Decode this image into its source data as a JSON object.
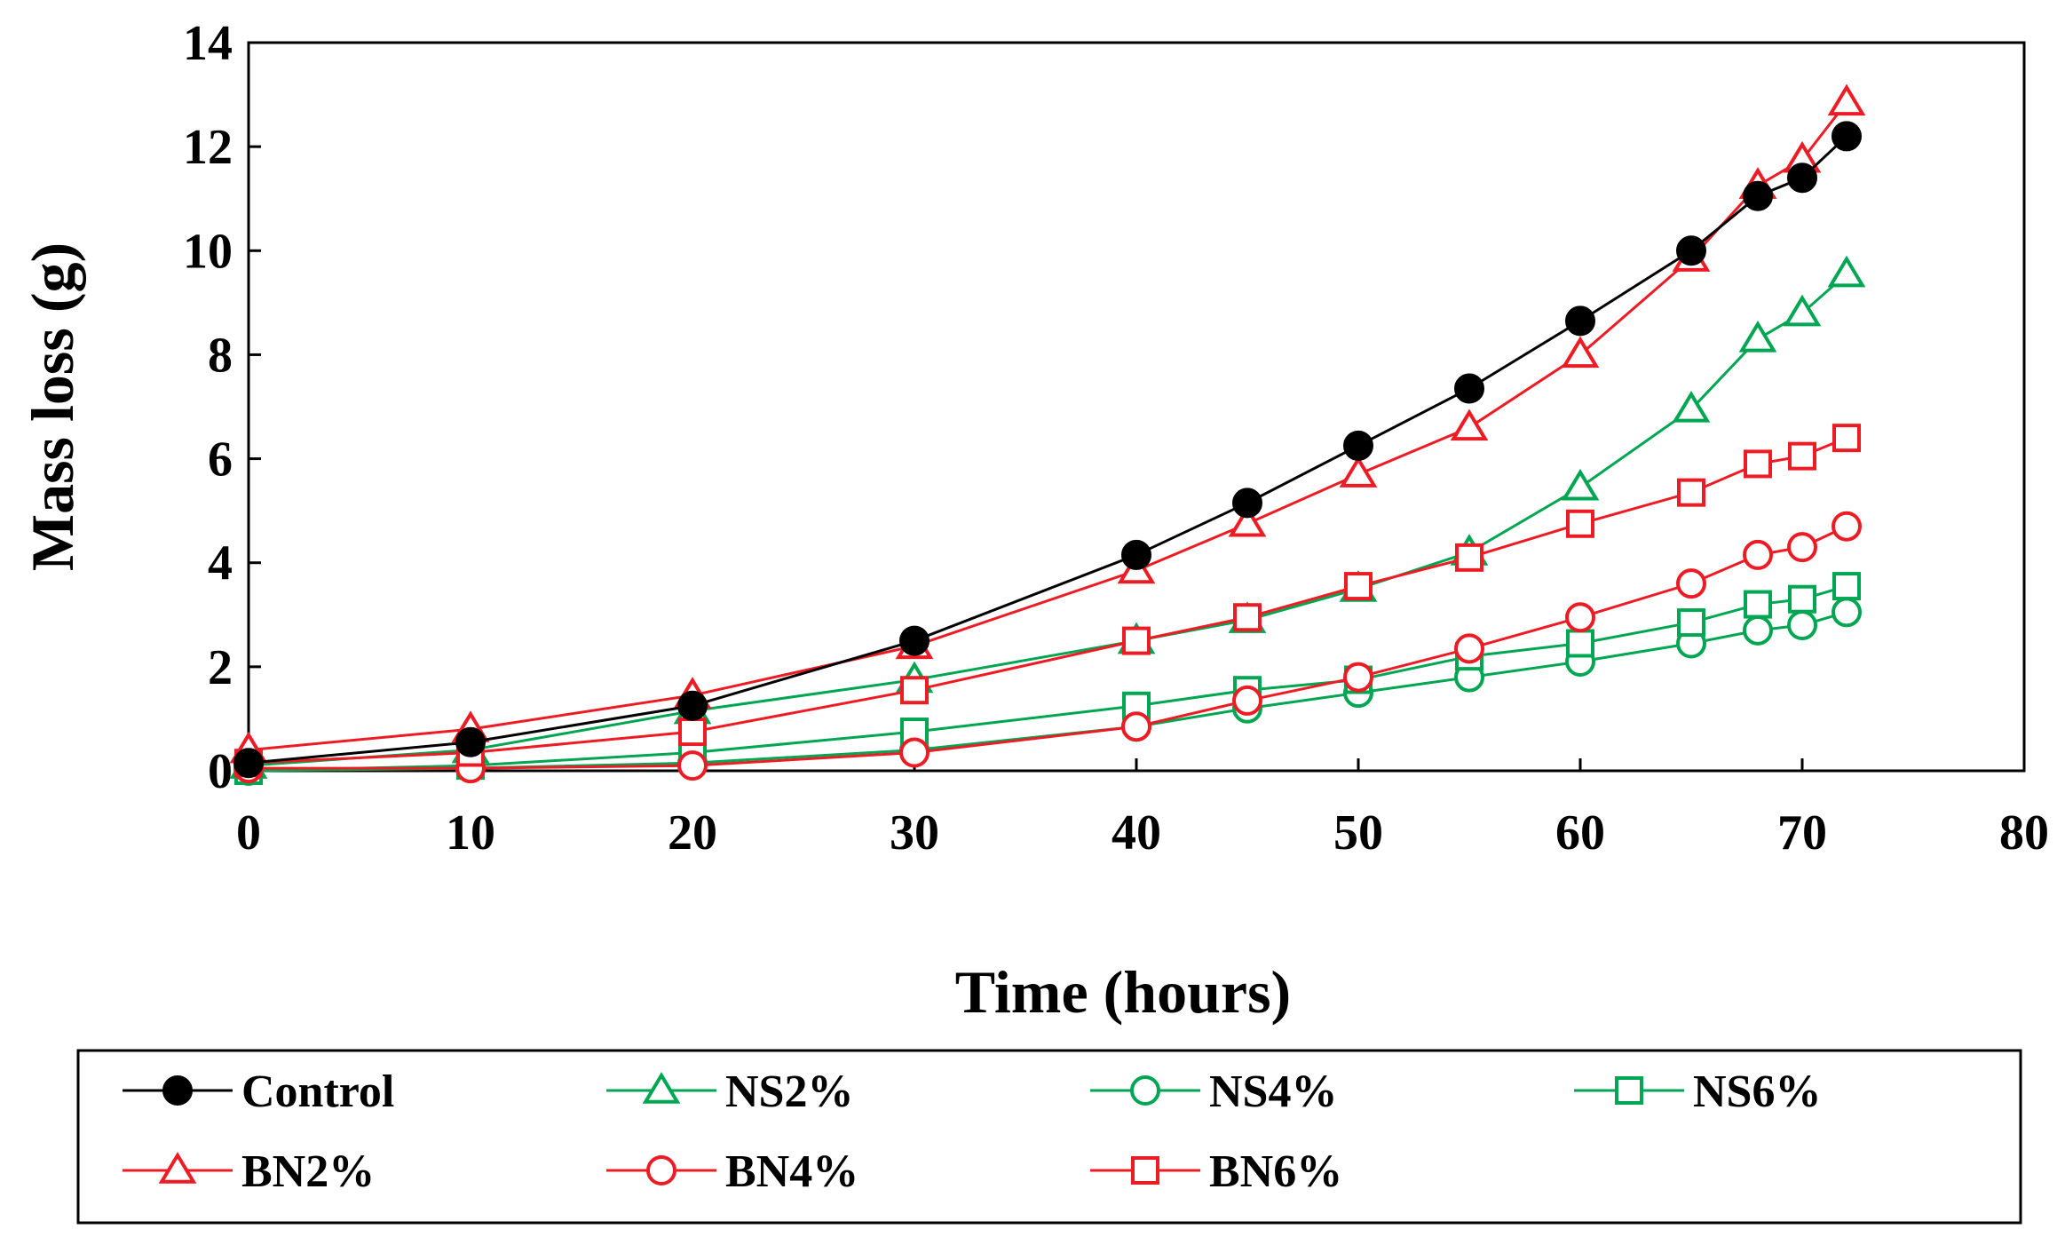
{
  "chart_data": {
    "type": "line",
    "title": "",
    "xlabel": "Time (hours)",
    "ylabel": "Mass loss (g)",
    "xlim": [
      0,
      80
    ],
    "ylim": [
      0,
      14
    ],
    "xticks": [
      0,
      10,
      20,
      30,
      40,
      50,
      60,
      70,
      80
    ],
    "yticks": [
      0,
      2,
      4,
      6,
      8,
      10,
      12,
      14
    ],
    "grid": false,
    "legend_position": "bottom",
    "colors": {
      "black": "#000000",
      "green": "#00a651",
      "red": "#ed1c24"
    },
    "x": [
      0,
      10,
      20,
      30,
      40,
      45,
      50,
      55,
      60,
      65,
      68,
      70,
      72
    ],
    "series": [
      {
        "name": "Control",
        "color": "#000000",
        "marker": "circle-filled",
        "values": [
          0.15,
          0.55,
          1.25,
          2.5,
          4.15,
          5.15,
          6.25,
          7.35,
          8.65,
          10.0,
          11.05,
          11.4,
          12.2
        ]
      },
      {
        "name": "NS2%",
        "color": "#00a651",
        "marker": "triangle-open",
        "values": [
          0.1,
          0.4,
          1.15,
          1.75,
          2.5,
          2.9,
          3.5,
          4.2,
          5.45,
          6.95,
          8.3,
          8.8,
          9.55
        ]
      },
      {
        "name": "NS4%",
        "color": "#00a651",
        "marker": "circle-open",
        "values": [
          0.0,
          0.05,
          0.15,
          0.4,
          0.85,
          1.2,
          1.5,
          1.8,
          2.1,
          2.45,
          2.7,
          2.8,
          3.05
        ]
      },
      {
        "name": "NS6%",
        "color": "#00a651",
        "marker": "square-open",
        "values": [
          0.0,
          0.1,
          0.35,
          0.75,
          1.25,
          1.55,
          1.75,
          2.2,
          2.45,
          2.85,
          3.2,
          3.3,
          3.55
        ]
      },
      {
        "name": "BN2%",
        "color": "#ed1c24",
        "marker": "triangle-open",
        "values": [
          0.4,
          0.8,
          1.45,
          2.4,
          3.85,
          4.75,
          5.7,
          6.6,
          8.0,
          9.85,
          11.25,
          11.75,
          12.85
        ]
      },
      {
        "name": "BN4%",
        "color": "#ed1c24",
        "marker": "circle-open",
        "values": [
          0.05,
          0.05,
          0.1,
          0.35,
          0.85,
          1.35,
          1.8,
          2.35,
          2.95,
          3.6,
          4.15,
          4.3,
          4.7
        ]
      },
      {
        "name": "BN6%",
        "color": "#ed1c24",
        "marker": "square-open",
        "values": [
          0.15,
          0.35,
          0.75,
          1.55,
          2.5,
          2.95,
          3.55,
          4.1,
          4.75,
          5.35,
          5.9,
          6.05,
          6.4
        ]
      }
    ]
  }
}
